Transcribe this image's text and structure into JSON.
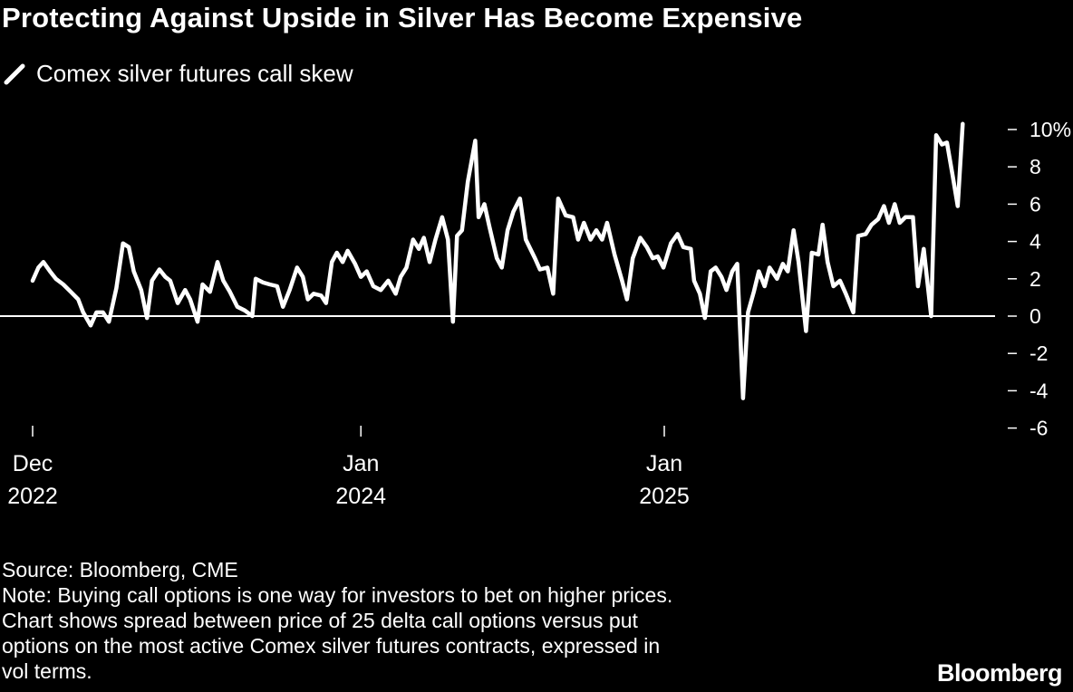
{
  "title": "Protecting Against Upside in Silver Has Become Expensive",
  "legend": {
    "label": "Comex silver futures call skew",
    "color": "#ffffff"
  },
  "footer": {
    "source": "Source: Bloomberg, CME",
    "note_lines": [
      "Note: Buying call options is one way for investors to bet on higher prices.",
      "Chart shows spread between price of 25 delta call options versus put",
      "options on the most active Comex silver futures contracts, expressed in",
      "vol terms."
    ]
  },
  "logo": "Bloomberg",
  "chart_data": {
    "type": "line",
    "title": "Protecting Against Upside in Silver Has Become Expensive",
    "xlabel": "",
    "ylabel": "",
    "ylim": [
      -6,
      10
    ],
    "yticks": [
      10,
      8,
      6,
      4,
      2,
      0,
      -2,
      -4,
      -6
    ],
    "ytick_labels": [
      "10%",
      "8",
      "6",
      "4",
      "2",
      "0",
      "-2",
      "-4",
      "-6"
    ],
    "xticks": [
      {
        "date": "2022-12-01",
        "label": [
          "Dec",
          "2022"
        ]
      },
      {
        "date": "2024-01-01",
        "label": [
          "Jan",
          "2024"
        ]
      },
      {
        "date": "2025-01-01",
        "label": [
          "Jan",
          "2025"
        ]
      }
    ],
    "zero_line": true,
    "grid": false,
    "legend_position": "top-left",
    "background": "#000000",
    "line_color": "#ffffff",
    "series": [
      {
        "name": "Comex silver futures call skew",
        "points": [
          [
            "2022-12-01",
            1.9
          ],
          [
            "2022-12-08",
            2.6
          ],
          [
            "2022-12-14",
            2.9
          ],
          [
            "2022-12-22",
            2.4
          ],
          [
            "2022-12-29",
            2.0
          ],
          [
            "2023-01-07",
            1.7
          ],
          [
            "2023-01-16",
            1.3
          ],
          [
            "2023-01-25",
            0.9
          ],
          [
            "2023-01-31",
            0.2
          ],
          [
            "2023-02-09",
            -0.5
          ],
          [
            "2023-02-16",
            0.2
          ],
          [
            "2023-02-24",
            0.2
          ],
          [
            "2023-03-03",
            -0.3
          ],
          [
            "2023-03-12",
            1.5
          ],
          [
            "2023-03-20",
            3.9
          ],
          [
            "2023-03-27",
            3.7
          ],
          [
            "2023-04-02",
            2.4
          ],
          [
            "2023-04-11",
            1.4
          ],
          [
            "2023-04-18",
            -0.1
          ],
          [
            "2023-04-24",
            1.9
          ],
          [
            "2023-05-03",
            2.5
          ],
          [
            "2023-05-10",
            2.1
          ],
          [
            "2023-05-16",
            1.9
          ],
          [
            "2023-05-25",
            0.7
          ],
          [
            "2023-06-03",
            1.4
          ],
          [
            "2023-06-09",
            0.9
          ],
          [
            "2023-06-18",
            -0.3
          ],
          [
            "2023-06-24",
            1.7
          ],
          [
            "2023-07-03",
            1.3
          ],
          [
            "2023-07-12",
            2.9
          ],
          [
            "2023-07-19",
            1.9
          ],
          [
            "2023-07-27",
            1.3
          ],
          [
            "2023-08-05",
            0.5
          ],
          [
            "2023-08-14",
            0.3
          ],
          [
            "2023-08-23",
            0.0
          ],
          [
            "2023-08-27",
            2.0
          ],
          [
            "2023-09-05",
            1.8
          ],
          [
            "2023-09-13",
            1.7
          ],
          [
            "2023-09-22",
            1.6
          ],
          [
            "2023-09-29",
            0.5
          ],
          [
            "2023-10-07",
            1.4
          ],
          [
            "2023-10-16",
            2.6
          ],
          [
            "2023-10-23",
            2.1
          ],
          [
            "2023-10-29",
            0.9
          ],
          [
            "2023-11-05",
            1.2
          ],
          [
            "2023-11-14",
            1.1
          ],
          [
            "2023-11-20",
            0.7
          ],
          [
            "2023-11-27",
            2.9
          ],
          [
            "2023-12-03",
            3.4
          ],
          [
            "2023-12-10",
            2.9
          ],
          [
            "2023-12-16",
            3.5
          ],
          [
            "2023-12-25",
            2.8
          ],
          [
            "2024-01-01",
            2.1
          ],
          [
            "2024-01-08",
            2.4
          ],
          [
            "2024-01-16",
            1.6
          ],
          [
            "2024-01-25",
            1.4
          ],
          [
            "2024-02-03",
            1.9
          ],
          [
            "2024-02-12",
            1.2
          ],
          [
            "2024-02-18",
            2.1
          ],
          [
            "2024-02-25",
            2.6
          ],
          [
            "2024-03-04",
            4.1
          ],
          [
            "2024-03-11",
            3.6
          ],
          [
            "2024-03-17",
            4.2
          ],
          [
            "2024-03-24",
            2.9
          ],
          [
            "2024-03-31",
            4.1
          ],
          [
            "2024-04-08",
            5.3
          ],
          [
            "2024-04-15",
            4.1
          ],
          [
            "2024-04-21",
            -0.3
          ],
          [
            "2024-04-26",
            4.3
          ],
          [
            "2024-05-02",
            4.6
          ],
          [
            "2024-05-09",
            7.2
          ],
          [
            "2024-05-18",
            9.4
          ],
          [
            "2024-05-22",
            5.3
          ],
          [
            "2024-05-29",
            6.0
          ],
          [
            "2024-06-04",
            4.8
          ],
          [
            "2024-06-13",
            3.1
          ],
          [
            "2024-06-19",
            2.6
          ],
          [
            "2024-06-26",
            4.6
          ],
          [
            "2024-07-03",
            5.6
          ],
          [
            "2024-07-11",
            6.3
          ],
          [
            "2024-07-18",
            4.1
          ],
          [
            "2024-07-29",
            3.1
          ],
          [
            "2024-08-04",
            2.5
          ],
          [
            "2024-08-13",
            2.6
          ],
          [
            "2024-08-20",
            1.2
          ],
          [
            "2024-08-26",
            6.3
          ],
          [
            "2024-09-04",
            5.4
          ],
          [
            "2024-09-13",
            5.3
          ],
          [
            "2024-09-19",
            4.1
          ],
          [
            "2024-09-26",
            5.0
          ],
          [
            "2024-10-04",
            4.1
          ],
          [
            "2024-10-11",
            4.6
          ],
          [
            "2024-10-18",
            4.1
          ],
          [
            "2024-10-24",
            5.0
          ],
          [
            "2024-11-02",
            3.3
          ],
          [
            "2024-11-11",
            1.9
          ],
          [
            "2024-11-17",
            0.9
          ],
          [
            "2024-11-24",
            3.1
          ],
          [
            "2024-12-03",
            4.2
          ],
          [
            "2024-12-11",
            3.7
          ],
          [
            "2024-12-18",
            3.1
          ],
          [
            "2024-12-24",
            3.2
          ],
          [
            "2024-12-31",
            2.6
          ],
          [
            "2025-01-09",
            3.9
          ],
          [
            "2025-01-17",
            4.4
          ],
          [
            "2025-01-24",
            3.7
          ],
          [
            "2025-02-02",
            3.6
          ],
          [
            "2025-02-06",
            1.9
          ],
          [
            "2025-02-13",
            1.2
          ],
          [
            "2025-02-19",
            -0.1
          ],
          [
            "2025-02-26",
            2.4
          ],
          [
            "2025-03-04",
            2.6
          ],
          [
            "2025-03-11",
            2.1
          ],
          [
            "2025-03-17",
            1.4
          ],
          [
            "2025-03-24",
            2.4
          ],
          [
            "2025-03-30",
            2.8
          ],
          [
            "2025-04-06",
            -4.4
          ],
          [
            "2025-04-12",
            0.2
          ],
          [
            "2025-04-19",
            1.3
          ],
          [
            "2025-04-25",
            2.4
          ],
          [
            "2025-05-02",
            1.6
          ],
          [
            "2025-05-08",
            2.6
          ],
          [
            "2025-05-17",
            2.0
          ],
          [
            "2025-05-24",
            2.8
          ],
          [
            "2025-05-30",
            2.4
          ],
          [
            "2025-06-06",
            4.6
          ],
          [
            "2025-06-12",
            2.9
          ],
          [
            "2025-06-21",
            -0.8
          ],
          [
            "2025-06-28",
            3.4
          ],
          [
            "2025-07-06",
            3.3
          ],
          [
            "2025-07-11",
            4.9
          ],
          [
            "2025-07-17",
            2.9
          ],
          [
            "2025-07-24",
            1.6
          ],
          [
            "2025-08-01",
            1.9
          ],
          [
            "2025-08-08",
            1.2
          ],
          [
            "2025-08-17",
            0.2
          ],
          [
            "2025-08-23",
            4.3
          ],
          [
            "2025-09-01",
            4.4
          ],
          [
            "2025-09-08",
            4.9
          ],
          [
            "2025-09-16",
            5.2
          ],
          [
            "2025-09-23",
            5.9
          ],
          [
            "2025-09-29",
            5.0
          ],
          [
            "2025-10-06",
            6.0
          ],
          [
            "2025-10-12",
            5.0
          ],
          [
            "2025-10-19",
            5.3
          ],
          [
            "2025-10-28",
            5.3
          ],
          [
            "2025-11-03",
            1.6
          ],
          [
            "2025-11-10",
            3.6
          ],
          [
            "2025-11-19",
            0.0
          ],
          [
            "2025-11-25",
            9.7
          ],
          [
            "2025-12-02",
            9.2
          ],
          [
            "2025-12-08",
            9.3
          ],
          [
            "2025-12-15",
            7.5
          ],
          [
            "2025-12-21",
            5.9
          ],
          [
            "2025-12-27",
            10.3
          ]
        ]
      }
    ]
  }
}
